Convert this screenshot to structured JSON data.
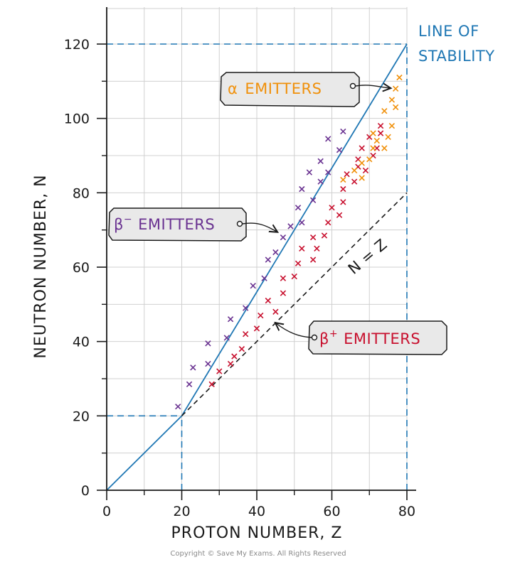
{
  "chart_data": {
    "type": "scatter",
    "xlabel": "PROTON NUMBER, Z",
    "ylabel": "NEUTRON NUMBER, N",
    "xlim": [
      0,
      80
    ],
    "ylim": [
      0,
      120
    ],
    "x_ticks": [
      "0",
      "20",
      "40",
      "60",
      "80"
    ],
    "y_ticks": [
      "0",
      "20",
      "40",
      "60",
      "80",
      "100",
      "120"
    ],
    "grid": true,
    "lines": [
      {
        "name": "LINE OF STABILITY",
        "style": "solid",
        "color": "#1f77b4",
        "points": [
          [
            0,
            0
          ],
          [
            20,
            20
          ],
          [
            80,
            120
          ]
        ]
      },
      {
        "name": "N = Z",
        "style": "dashed",
        "color": "#1a1a1a",
        "points": [
          [
            20,
            20
          ],
          [
            80,
            80
          ]
        ]
      }
    ],
    "reference_lines": [
      {
        "style": "dashed",
        "color": "#1f77b4",
        "points": [
          [
            0,
            120
          ],
          [
            80,
            120
          ]
        ]
      },
      {
        "style": "dashed",
        "color": "#1f77b4",
        "points": [
          [
            80,
            0
          ],
          [
            80,
            120
          ]
        ]
      },
      {
        "style": "dashed",
        "color": "#1f77b4",
        "points": [
          [
            0,
            20
          ],
          [
            20,
            20
          ]
        ]
      },
      {
        "style": "dashed",
        "color": "#1f77b4",
        "points": [
          [
            20,
            0
          ],
          [
            20,
            20
          ]
        ]
      }
    ],
    "series": [
      {
        "name": "β⁻ EMITTERS",
        "color": "#6a3391",
        "marker": "x",
        "points": [
          [
            19,
            22.5
          ],
          [
            22,
            28.5
          ],
          [
            23,
            33
          ],
          [
            27,
            34
          ],
          [
            27,
            39.5
          ],
          [
            33,
            46
          ],
          [
            32,
            41
          ],
          [
            37,
            49
          ],
          [
            39,
            55
          ],
          [
            42,
            57
          ],
          [
            43,
            62
          ],
          [
            45,
            64
          ],
          [
            47,
            68
          ],
          [
            49,
            71
          ],
          [
            52,
            72
          ],
          [
            51,
            76
          ],
          [
            55,
            78
          ],
          [
            52,
            81
          ],
          [
            54,
            85.5
          ],
          [
            57,
            83
          ],
          [
            57,
            88.5
          ],
          [
            59,
            85.5
          ],
          [
            59,
            94.5
          ],
          [
            62,
            91.5
          ],
          [
            63,
            96.5
          ]
        ]
      },
      {
        "name": "β⁺ EMITTERS",
        "color": "#c8102e",
        "marker": "x",
        "points": [
          [
            28,
            28.5
          ],
          [
            30,
            32
          ],
          [
            33,
            34
          ],
          [
            34,
            36
          ],
          [
            36,
            38
          ],
          [
            37,
            42
          ],
          [
            40,
            43.5
          ],
          [
            41,
            47
          ],
          [
            43,
            51
          ],
          [
            45,
            48
          ],
          [
            47,
            53
          ],
          [
            47,
            57
          ],
          [
            50,
            57.5
          ],
          [
            51,
            61
          ],
          [
            52,
            65
          ],
          [
            55,
            62
          ],
          [
            55,
            68
          ],
          [
            56,
            65
          ],
          [
            58,
            68.5
          ],
          [
            59,
            72
          ],
          [
            60,
            76
          ],
          [
            62,
            74
          ],
          [
            63,
            77.5
          ],
          [
            63,
            81
          ],
          [
            64,
            85
          ],
          [
            66,
            83
          ],
          [
            67,
            89
          ],
          [
            67,
            87
          ],
          [
            68,
            92
          ],
          [
            69,
            86
          ],
          [
            70,
            95
          ],
          [
            71,
            90
          ],
          [
            72,
            92
          ],
          [
            73,
            96
          ],
          [
            73,
            98
          ]
        ]
      },
      {
        "name": "α EMITTERS",
        "color": "#f0900a",
        "marker": "x",
        "points": [
          [
            63,
            83.5
          ],
          [
            66,
            86
          ],
          [
            68,
            84
          ],
          [
            68,
            88
          ],
          [
            70,
            89
          ],
          [
            71,
            96
          ],
          [
            71,
            92
          ],
          [
            72,
            94
          ],
          [
            74,
            92
          ],
          [
            74,
            102
          ],
          [
            75,
            95
          ],
          [
            76,
            98
          ],
          [
            76,
            105
          ],
          [
            77,
            103
          ],
          [
            77,
            108
          ],
          [
            78,
            111
          ]
        ]
      }
    ],
    "annotations": {
      "line_of_stability": "LINE OF\nSTABILITY",
      "alpha": "EMITTERS",
      "beta_minus": "EMITTERS",
      "beta_plus": "EMITTERS",
      "n_equals_z": "N = Z"
    },
    "colors": {
      "axis": "#1a1a1a",
      "grid": "#d0d0d0",
      "stability": "#1f77b4",
      "alpha": "#f0900a",
      "beta_minus": "#6a3391",
      "beta_plus": "#c8102e"
    }
  },
  "labels": {
    "stability_line1": "LINE OF",
    "stability_line2": "STABILITY",
    "alpha_symbol": "α",
    "alpha_text": "EMITTERS",
    "beta_minus_symbol": "β",
    "beta_minus_sup": "−",
    "beta_minus_text": "EMITTERS",
    "beta_plus_symbol": "β",
    "beta_plus_sup": "+",
    "beta_plus_text": "EMITTERS",
    "n_equals_z": "N = Z",
    "copyright": "Copyright © Save My Exams. All Rights Reserved"
  }
}
